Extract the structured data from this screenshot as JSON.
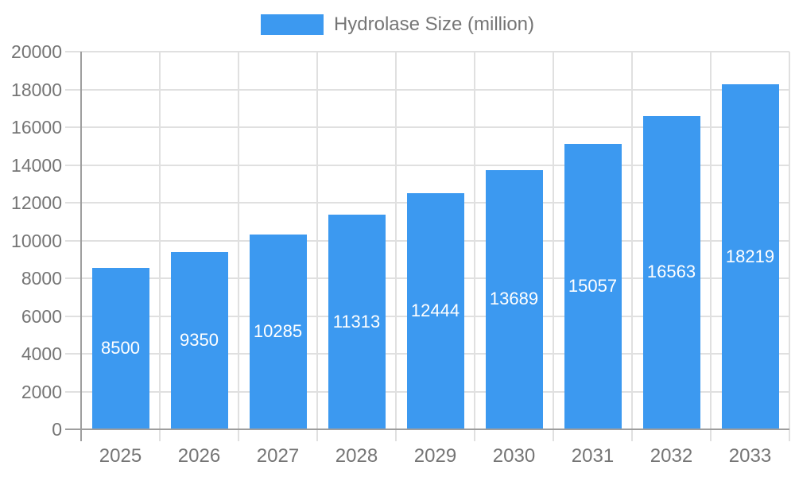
{
  "chart_data": {
    "type": "bar",
    "title": "Hydrolase Size (million)",
    "legend_position": "top",
    "categories": [
      "2025",
      "2026",
      "2027",
      "2028",
      "2029",
      "2030",
      "2031",
      "2032",
      "2033"
    ],
    "values": [
      8500,
      9350,
      10285,
      11313,
      12444,
      13689,
      15057,
      16563,
      18219
    ],
    "value_labels": [
      "8500",
      "9350",
      "10285",
      "11313",
      "12444",
      "13689",
      "15057",
      "16563",
      "18219"
    ],
    "xlabel": "",
    "ylabel": "",
    "ylim": [
      0,
      20000
    ],
    "yticks": [
      0,
      2000,
      4000,
      6000,
      8000,
      10000,
      12000,
      14000,
      16000,
      18000,
      20000
    ],
    "ytick_labels": [
      "0",
      "2000",
      "4000",
      "6000",
      "8000",
      "10000",
      "12000",
      "14000",
      "16000",
      "18000",
      "20000"
    ],
    "grid": true,
    "colors": {
      "bar": "#3C99F0",
      "grid": "#E0E0E0",
      "axis_line": "#9E9E9E",
      "axis_text": "#757575",
      "value_label": "#FFFFFF",
      "background": "#FFFFFF"
    }
  }
}
